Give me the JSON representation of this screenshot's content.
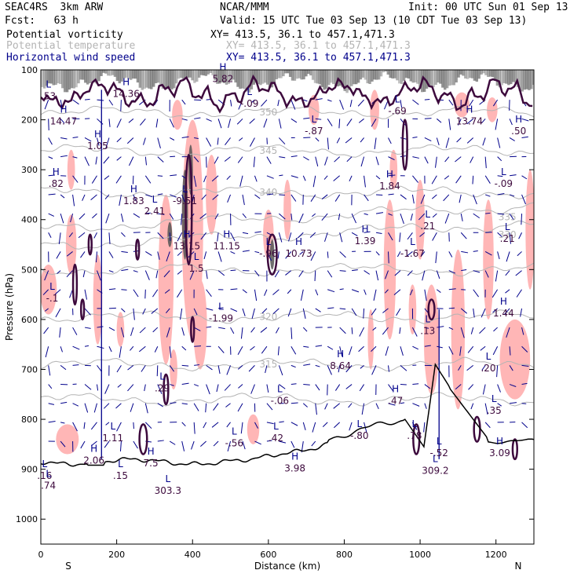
{
  "header": {
    "model": "SEAC4RS  3km ARW",
    "center": "NCAR/MMM",
    "init": "Init: 00 UTC Sun 01 Sep 13",
    "fcst": "Fcst:   63 h",
    "valid": "Valid: 15 UTC Tue 03 Sep 13 (10 CDT Tue 03 Sep 13)"
  },
  "legend": [
    {
      "label": "Potential vorticity",
      "xy": "XY= 413.5, 36.1 to 457.1,471.3",
      "color": "#000000"
    },
    {
      "label": "Potential temperature",
      "xy": "XY= 413.5, 36.1 to 457.1,471.3",
      "color": "#b4b4b4"
    },
    {
      "label": "Horizontal wind speed",
      "xy": "XY= 413.5, 36.1 to 457.1,471.3",
      "color": "#00008b"
    }
  ],
  "chart_data": {
    "type": "contour-cross-section",
    "xlabel": "Distance (km)",
    "ylabel": "Pressure (hPa)",
    "xlim": [
      0,
      1300
    ],
    "ylim": [
      1050,
      100
    ],
    "x_ticks": [
      0,
      200,
      400,
      600,
      800,
      1000,
      1200
    ],
    "y_ticks": [
      100,
      200,
      300,
      400,
      500,
      600,
      700,
      800,
      900,
      1000
    ],
    "x_end_labels": {
      "left": "S",
      "right": "N"
    },
    "colors": {
      "pv": "#3d0a3d",
      "theta": "#b4b4b4",
      "wind": "#00008b",
      "pv_fill": "#ffb6b6",
      "high_pv": "#555555",
      "terrain": "#000000"
    },
    "theta_contours": [
      {
        "label": "350",
        "x": 600,
        "p": 185
      },
      {
        "label": "345",
        "x": 600,
        "p": 262
      },
      {
        "label": "340",
        "x": 600,
        "p": 345
      },
      {
        "label": "335",
        "x": 1230,
        "p": 395
      },
      {
        "label": "330",
        "x": 1230,
        "p": 430
      },
      {
        "label": "320",
        "x": 600,
        "p": 595
      },
      {
        "label": "315",
        "x": 600,
        "p": 690
      }
    ],
    "extrema_labels": [
      {
        "mark": "H",
        "value": "14.47",
        "x": 60,
        "p": 195
      },
      {
        "mark": "L",
        "value": ".53",
        "x": 20,
        "p": 145
      },
      {
        "mark": "H",
        "value": "14.36",
        "x": 225,
        "p": 140
      },
      {
        "mark": "H",
        "value": "1.05",
        "x": 150,
        "p": 245
      },
      {
        "mark": "H",
        "value": ".82",
        "x": 40,
        "p": 320
      },
      {
        "mark": "H",
        "value": "1.83",
        "x": 245,
        "p": 355
      },
      {
        "mark": "L",
        "value": "-9.51",
        "x": 380,
        "p": 355
      },
      {
        "mark": "L",
        "value": "2.41",
        "x": 300,
        "p": 375
      },
      {
        "mark": "H",
        "value": "13.15",
        "x": 385,
        "p": 445
      },
      {
        "mark": "H",
        "value": "11.15",
        "x": 490,
        "p": 445
      },
      {
        "mark": "L",
        "value": "-.96",
        "x": 600,
        "p": 460
      },
      {
        "mark": "H",
        "value": "10.73",
        "x": 680,
        "p": 460
      },
      {
        "mark": "L",
        "value": "1.5",
        "x": 410,
        "p": 490
      },
      {
        "mark": "H",
        "value": "1.39",
        "x": 855,
        "p": 435
      },
      {
        "mark": "L",
        "value": "-1.67",
        "x": 980,
        "p": 460
      },
      {
        "mark": "L",
        "value": "-.1",
        "x": 30,
        "p": 550
      },
      {
        "mark": "L",
        "value": "-1.99",
        "x": 475,
        "p": 590
      },
      {
        "mark": "H",
        "value": "1.84",
        "x": 920,
        "p": 325
      },
      {
        "mark": "L",
        "value": ".21",
        "x": 1020,
        "p": 405
      },
      {
        "mark": "L",
        "value": "-.09",
        "x": 1220,
        "p": 320
      },
      {
        "mark": "L",
        "value": ".21",
        "x": 1230,
        "p": 430
      },
      {
        "mark": "H",
        "value": "1.44",
        "x": 1220,
        "p": 580
      },
      {
        "mark": "L",
        "value": ".13",
        "x": 1020,
        "p": 615
      },
      {
        "mark": "H",
        "value": "8.64",
        "x": 790,
        "p": 685
      },
      {
        "mark": "L",
        "value": ".20",
        "x": 1180,
        "p": 690
      },
      {
        "mark": "L",
        "value": ".29",
        "x": 320,
        "p": 730
      },
      {
        "mark": "L",
        "value": "-.06",
        "x": 630,
        "p": 755
      },
      {
        "mark": "H",
        "value": ".47",
        "x": 935,
        "p": 755
      },
      {
        "mark": "L",
        "value": ".35",
        "x": 1195,
        "p": 775
      },
      {
        "mark": "L",
        "value": "1.11",
        "x": 190,
        "p": 830
      },
      {
        "mark": "L",
        "value": "-.56",
        "x": 510,
        "p": 840
      },
      {
        "mark": "L",
        "value": ".42",
        "x": 620,
        "p": 830
      },
      {
        "mark": "L",
        "value": "-.80",
        "x": 840,
        "p": 825
      },
      {
        "mark": "L",
        "value": ".78",
        "x": 985,
        "p": 825
      },
      {
        "mark": "H",
        "value": "2.06",
        "x": 140,
        "p": 875
      },
      {
        "mark": "H",
        "value": "7.5",
        "x": 290,
        "p": 880
      },
      {
        "mark": "H",
        "value": "3.98",
        "x": 670,
        "p": 890
      },
      {
        "mark": "L",
        "value": "-.52",
        "x": 1050,
        "p": 860
      },
      {
        "mark": "H",
        "value": "3.09",
        "x": 1210,
        "p": 860
      },
      {
        "mark": "L",
        "value": "309.2",
        "x": 1040,
        "p": 895
      },
      {
        "mark": "L",
        "value": ".16",
        "x": 10,
        "p": 905
      },
      {
        "mark": "L",
        "value": ".74",
        "x": 20,
        "p": 925
      },
      {
        "mark": "L",
        "value": ".15",
        "x": 210,
        "p": 905
      },
      {
        "mark": "L",
        "value": "303.3",
        "x": 335,
        "p": 935
      },
      {
        "mark": "L",
        "value": "-.69",
        "x": 940,
        "p": 175
      },
      {
        "mark": "L",
        "value": "-.87",
        "x": 720,
        "p": 215
      },
      {
        "mark": "L",
        "value": "-.09",
        "x": 550,
        "p": 160
      },
      {
        "mark": "H",
        "value": "13.74",
        "x": 1130,
        "p": 195
      },
      {
        "mark": "H",
        "value": ".50",
        "x": 1260,
        "p": 215
      },
      {
        "mark": "H",
        "value": "5.82",
        "x": 480,
        "p": 110
      }
    ]
  }
}
